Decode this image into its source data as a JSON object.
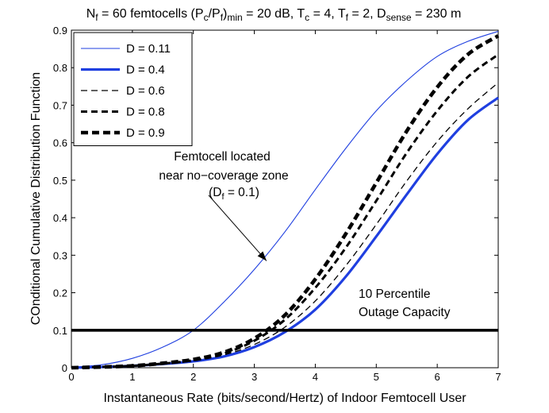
{
  "chart_data": {
    "type": "line",
    "title": {
      "parts": [
        {
          "text": "N",
          "sub": false
        },
        {
          "text": "f",
          "sub": true
        },
        {
          "text": " = 60 femtocells (P",
          "sub": false
        },
        {
          "text": "c",
          "sub": true
        },
        {
          "text": "/P",
          "sub": false
        },
        {
          "text": "f",
          "sub": true
        },
        {
          "text": ")",
          "sub": false
        },
        {
          "text": "min",
          "sub": true
        },
        {
          "text": " = 20 dB, T",
          "sub": false
        },
        {
          "text": "c",
          "sub": true
        },
        {
          "text": " = 4, T",
          "sub": false
        },
        {
          "text": "f",
          "sub": true
        },
        {
          "text": " = 2, D",
          "sub": false
        },
        {
          "text": "sense",
          "sub": true
        },
        {
          "text": " = 230 m",
          "sub": false
        }
      ]
    },
    "xlabel": "Instantaneous Rate (bits/second/Hertz) of Indoor Femtocell User",
    "ylabel": "COnditional  Cumulative Distribution Function",
    "xlim": [
      0,
      7
    ],
    "ylim": [
      0,
      0.9
    ],
    "xticks": [
      0,
      1,
      2,
      3,
      4,
      5,
      6,
      7
    ],
    "yticks": [
      0,
      0.1,
      0.2,
      0.3,
      0.4,
      0.5,
      0.6,
      0.7,
      0.8,
      0.9
    ],
    "xtick_labels": [
      "0",
      "1",
      "2",
      "3",
      "4",
      "5",
      "6",
      "7"
    ],
    "ytick_labels": [
      "0",
      "0.1",
      "0.2",
      "0.3",
      "0.4",
      "0.5",
      "0.6",
      "0.7",
      "0.8",
      "0.9"
    ],
    "x": [
      0,
      0.5,
      1,
      1.5,
      2,
      2.5,
      3,
      3.5,
      4,
      4.5,
      5,
      5.5,
      6,
      6.5,
      7
    ],
    "series": [
      {
        "name": "D = 0.11",
        "color": "#1f3fe0",
        "style": "solid-thin",
        "values": [
          0.002,
          0.008,
          0.025,
          0.055,
          0.1,
          0.175,
          0.262,
          0.362,
          0.475,
          0.585,
          0.685,
          0.765,
          0.83,
          0.87,
          0.897
        ]
      },
      {
        "name": "D = 0.4",
        "color": "#1f3fe0",
        "style": "solid-thick",
        "values": [
          0.0,
          0.002,
          0.005,
          0.01,
          0.017,
          0.03,
          0.055,
          0.095,
          0.155,
          0.243,
          0.35,
          0.462,
          0.57,
          0.66,
          0.72
        ]
      },
      {
        "name": "D = 0.6",
        "color": "#000000",
        "style": "dashed-thin",
        "values": [
          0.0,
          0.002,
          0.005,
          0.01,
          0.018,
          0.034,
          0.062,
          0.108,
          0.178,
          0.272,
          0.382,
          0.498,
          0.603,
          0.69,
          0.76
        ]
      },
      {
        "name": "D = 0.8",
        "color": "#000000",
        "style": "dashed-medium",
        "values": [
          0.0,
          0.002,
          0.005,
          0.011,
          0.02,
          0.038,
          0.072,
          0.128,
          0.213,
          0.32,
          0.445,
          0.573,
          0.685,
          0.775,
          0.835
        ]
      },
      {
        "name": "D = 0.9",
        "color": "#000000",
        "style": "dashed-thick",
        "values": [
          0.0,
          0.002,
          0.005,
          0.012,
          0.022,
          0.041,
          0.078,
          0.14,
          0.236,
          0.357,
          0.493,
          0.631,
          0.748,
          0.835,
          0.885
        ]
      }
    ],
    "reference_line": {
      "y": 0.1,
      "label_line1": "10 Percentile",
      "label_line2": "Outage Capacity"
    },
    "annotation": {
      "line1": "Femtocell located",
      "line2": "near no−coverage zone",
      "line3_parts": [
        {
          "text": "(D",
          "sub": false
        },
        {
          "text": "f",
          "sub": true
        },
        {
          "text": " = 0.1)",
          "sub": false
        }
      ],
      "arrow_tail": [
        2.25,
        0.46
      ],
      "arrow_head": [
        3.2,
        0.285
      ]
    },
    "legend_position": "top-left",
    "grid": false
  }
}
